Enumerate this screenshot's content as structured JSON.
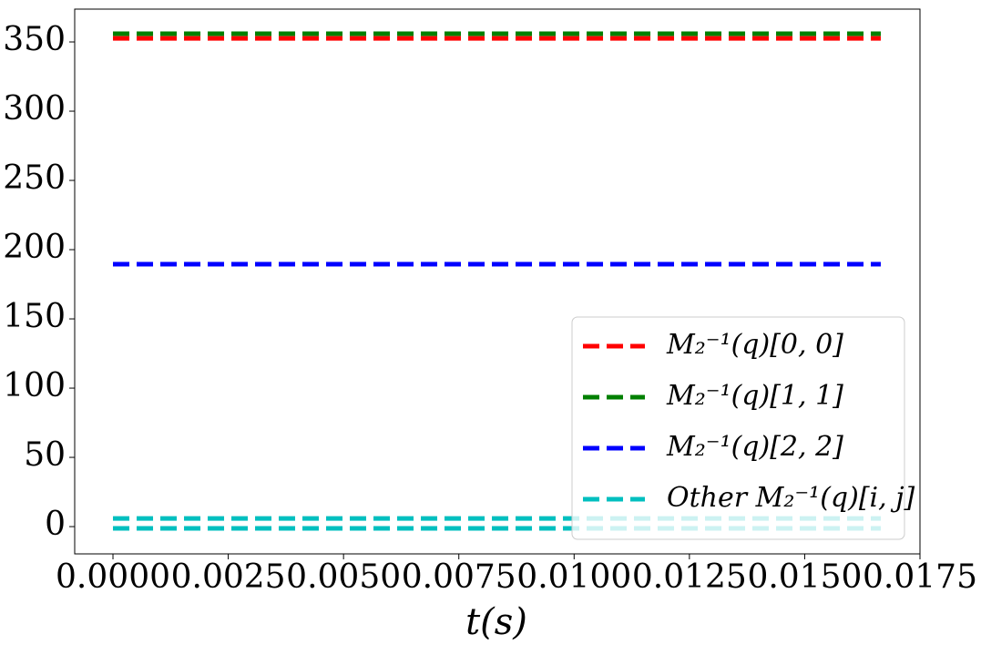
{
  "chart_data": {
    "type": "line",
    "x_label": "t(s)",
    "x": [
      0,
      0.01665
    ],
    "series": [
      {
        "name": "M₂⁻¹(q)[0, 0]",
        "color": "#ff0000",
        "values": [
          352.6,
          352.6
        ]
      },
      {
        "name": "M₂⁻¹(q)[1, 1]",
        "color": "#008000",
        "values": [
          355.9,
          355.9
        ]
      },
      {
        "name": "M₂⁻¹(q)[2, 2]",
        "color": "#0000ff",
        "values": [
          189.5,
          189.5
        ]
      },
      {
        "name": "Other M₂⁻¹(q)[i, j]",
        "color": "#00bfbf",
        "values": [
          5.9,
          5.9
        ]
      },
      {
        "color": "#00bfbf",
        "values": [
          -1.3,
          -1.3
        ]
      }
    ],
    "xlim": [
      -0.00083,
      0.0175
    ],
    "ylim": [
      -19.7,
      373.7
    ],
    "xticks": [
      {
        "value": 0,
        "label": "0.0000"
      },
      {
        "value": 0.0025,
        "label": "0.0025"
      },
      {
        "value": 0.005,
        "label": "0.0050"
      },
      {
        "value": 0.0075,
        "label": "0.0075"
      },
      {
        "value": 0.01,
        "label": "0.0100"
      },
      {
        "value": 0.0125,
        "label": "0.0125"
      },
      {
        "value": 0.015,
        "label": "0.0150"
      },
      {
        "value": 0.0175,
        "label": "0.0175"
      }
    ],
    "yticks": [
      0,
      50,
      100,
      150,
      200,
      250,
      300,
      350
    ],
    "legend": "lower right"
  }
}
